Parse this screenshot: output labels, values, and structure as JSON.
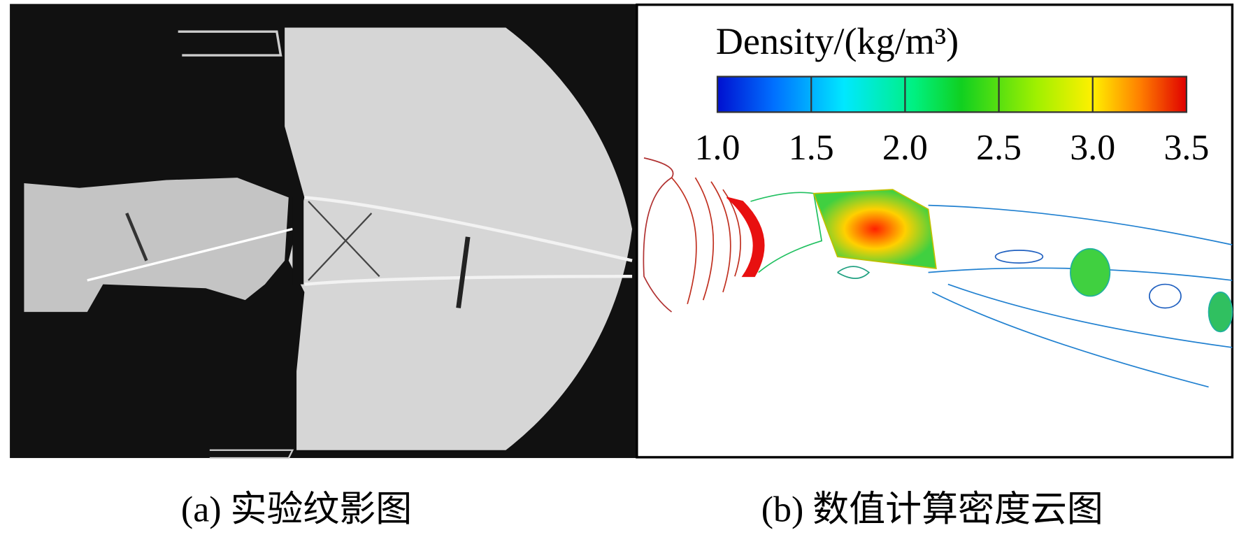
{
  "panels": [
    {
      "caption": "(a) 实验纹影图"
    },
    {
      "caption": "(b) 数值计算密度云图",
      "colorbar": {
        "title": "Density/(kg/m³)",
        "lim": [
          1,
          3.5
        ],
        "ticks": [
          {
            "value": 1,
            "label": "1.0"
          },
          {
            "value": 1.5,
            "label": "1.5"
          },
          {
            "value": 2,
            "label": "2.0"
          },
          {
            "value": 2.5,
            "label": "2.5"
          },
          {
            "value": 3,
            "label": "3.0"
          },
          {
            "value": 3.5,
            "label": "3.5"
          }
        ]
      }
    }
  ]
}
